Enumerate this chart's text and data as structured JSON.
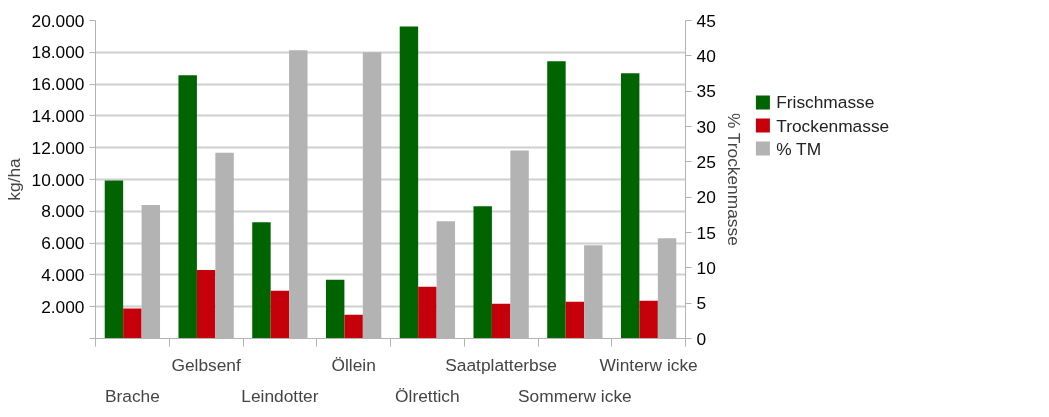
{
  "chart_data": {
    "type": "bar",
    "ylabel": "kg/ha",
    "y2label": "% Trockenmasse",
    "categories": [
      "Brache",
      "Gelbsenf",
      "Leindotter",
      "Öllein",
      "Ölrettich",
      "Saatplatterbse",
      "Sommerw icke",
      "Winterw icke"
    ],
    "series": [
      {
        "name": "Frischmasse",
        "color": "#006400",
        "values": [
          9940,
          16560,
          7310,
          3690,
          19620,
          8310,
          17440,
          16690
        ]
      },
      {
        "name": "Trockenmasse",
        "color": "#c5000b",
        "values": [
          1880,
          4310,
          3000,
          1500,
          3250,
          2190,
          2310,
          2380
        ]
      },
      {
        "name": "% TM",
        "color": "#b3b3b3",
        "axis": "y2",
        "values": [
          18.9,
          26.3,
          40.8,
          40.5,
          16.6,
          26.6,
          13.2,
          14.2
        ]
      }
    ],
    "ylim": [
      0,
      20000
    ],
    "yticks": [
      {
        "value": 0,
        "label": null
      },
      {
        "value": 2000,
        "label": "2.000"
      },
      {
        "value": 4000,
        "label": "4.000"
      },
      {
        "value": 6000,
        "label": "6.000"
      },
      {
        "value": 8000,
        "label": "8.000"
      },
      {
        "value": 10000,
        "label": "10.000"
      },
      {
        "value": 12000,
        "label": "12.000"
      },
      {
        "value": 14000,
        "label": "14.000"
      },
      {
        "value": 16000,
        "label": "16.000"
      },
      {
        "value": 18000,
        "label": "18.000"
      },
      {
        "value": 20000,
        "label": "20.000"
      }
    ],
    "y2lim": [
      0,
      45
    ],
    "y2ticks": [
      0,
      5,
      10,
      15,
      20,
      25,
      30,
      35,
      40,
      45
    ],
    "grid": "y",
    "legend": "right"
  }
}
